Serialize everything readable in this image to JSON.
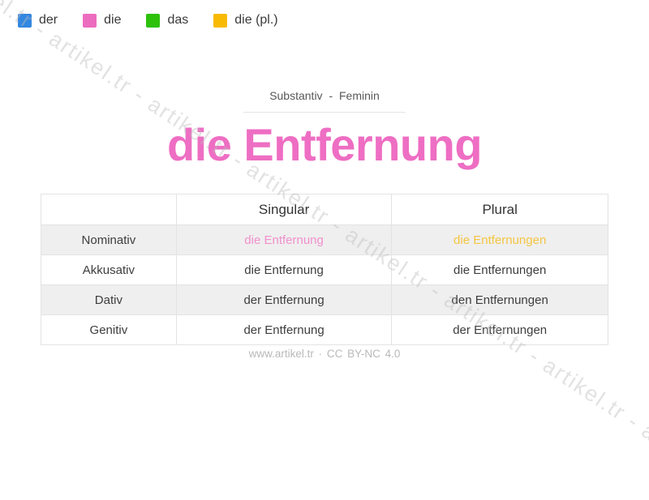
{
  "legend": {
    "items": [
      {
        "name": "der",
        "label": "der",
        "color": "#3287e1"
      },
      {
        "name": "die",
        "label": "die",
        "color": "#ec6cbf"
      },
      {
        "name": "das",
        "label": "das",
        "color": "#2dc10c"
      },
      {
        "name": "die-pl",
        "label": "die (pl.)",
        "color": "#f8ba03"
      }
    ]
  },
  "header": {
    "subtitle": "Substantiv - Feminin",
    "title": "die Entfernung",
    "title_color": "#ee6ec3"
  },
  "table": {
    "columns": [
      "",
      "Singular",
      "Plural"
    ],
    "rows": [
      {
        "case": "Nominativ",
        "singular": "die Entfernung",
        "plural": "die Entfernungen",
        "singular_color": "#f090cc",
        "plural_color": "#f5c542"
      },
      {
        "case": "Akkusativ",
        "singular": "die Entfernung",
        "plural": "die Entfernungen"
      },
      {
        "case": "Dativ",
        "singular": "der Entfernung",
        "plural": "den Entfernungen"
      },
      {
        "case": "Genitiv",
        "singular": "der Entfernung",
        "plural": "der Entfernungen"
      }
    ]
  },
  "footer": {
    "text": "www.artikel.tr · CC BY-NC 4.0"
  },
  "watermark": {
    "text": "artikel.tr - artikel.tr - artikel.tr - artikel.tr - artikel.tr - artikel.tr - artikel.tr - artikel.tr - "
  }
}
